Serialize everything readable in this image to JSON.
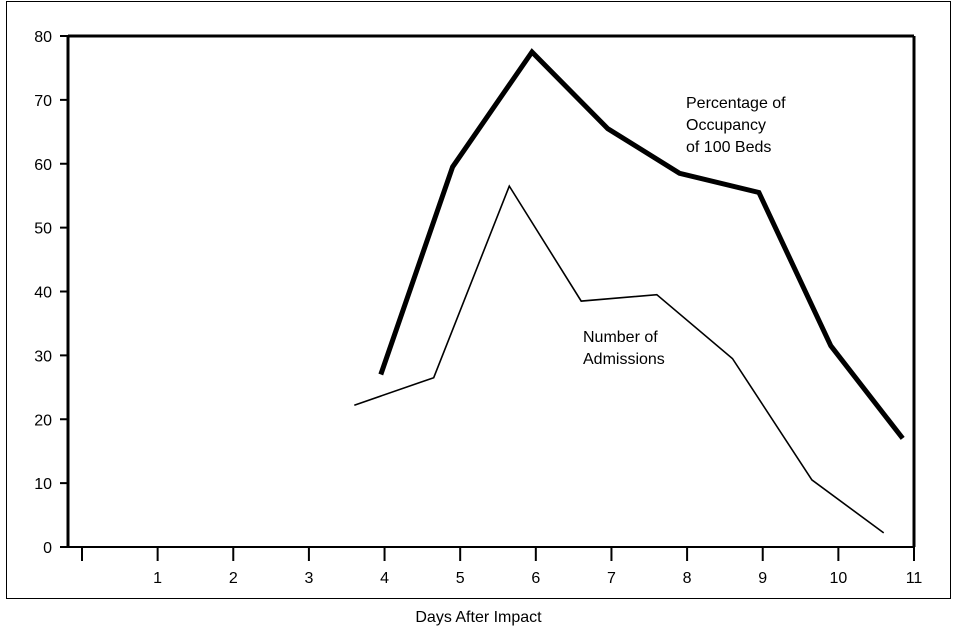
{
  "chart_data": {
    "type": "line",
    "title": "",
    "xlabel": "Days After Impact",
    "ylabel": "",
    "x_ticks": [
      1,
      2,
      3,
      4,
      5,
      6,
      7,
      8,
      9,
      10,
      11
    ],
    "y_ticks": [
      0,
      10,
      20,
      30,
      40,
      50,
      60,
      70,
      80
    ],
    "ylim": [
      0,
      80
    ],
    "xlim": [
      0,
      11
    ],
    "grid": false,
    "legend": "none (series labeled directly on chart)",
    "series": [
      {
        "name": "Percentage of Occupancy of 100 Beds",
        "label_lines": [
          "Percentage of",
          "Occupancy",
          "of 100 Beds"
        ],
        "style": "thick",
        "color": "#000000",
        "points": [
          {
            "x": 3.95,
            "y": 27
          },
          {
            "x": 4.9,
            "y": 59.5
          },
          {
            "x": 5.95,
            "y": 77.5
          },
          {
            "x": 6.95,
            "y": 65.5
          },
          {
            "x": 7.9,
            "y": 58.5
          },
          {
            "x": 8.95,
            "y": 55.5
          },
          {
            "x": 9.9,
            "y": 31.5
          },
          {
            "x": 10.85,
            "y": 17
          }
        ]
      },
      {
        "name": "Number of Admissions",
        "label_lines": [
          "Number of",
          "Admissions"
        ],
        "style": "thin",
        "color": "#000000",
        "points": [
          {
            "x": 3.6,
            "y": 22.2
          },
          {
            "x": 4.65,
            "y": 26.5
          },
          {
            "x": 5.65,
            "y": 56.5
          },
          {
            "x": 6.6,
            "y": 38.5
          },
          {
            "x": 7.6,
            "y": 39.5
          },
          {
            "x": 8.6,
            "y": 29.5
          },
          {
            "x": 9.65,
            "y": 10.5
          },
          {
            "x": 10.6,
            "y": 2.2
          }
        ]
      }
    ]
  }
}
